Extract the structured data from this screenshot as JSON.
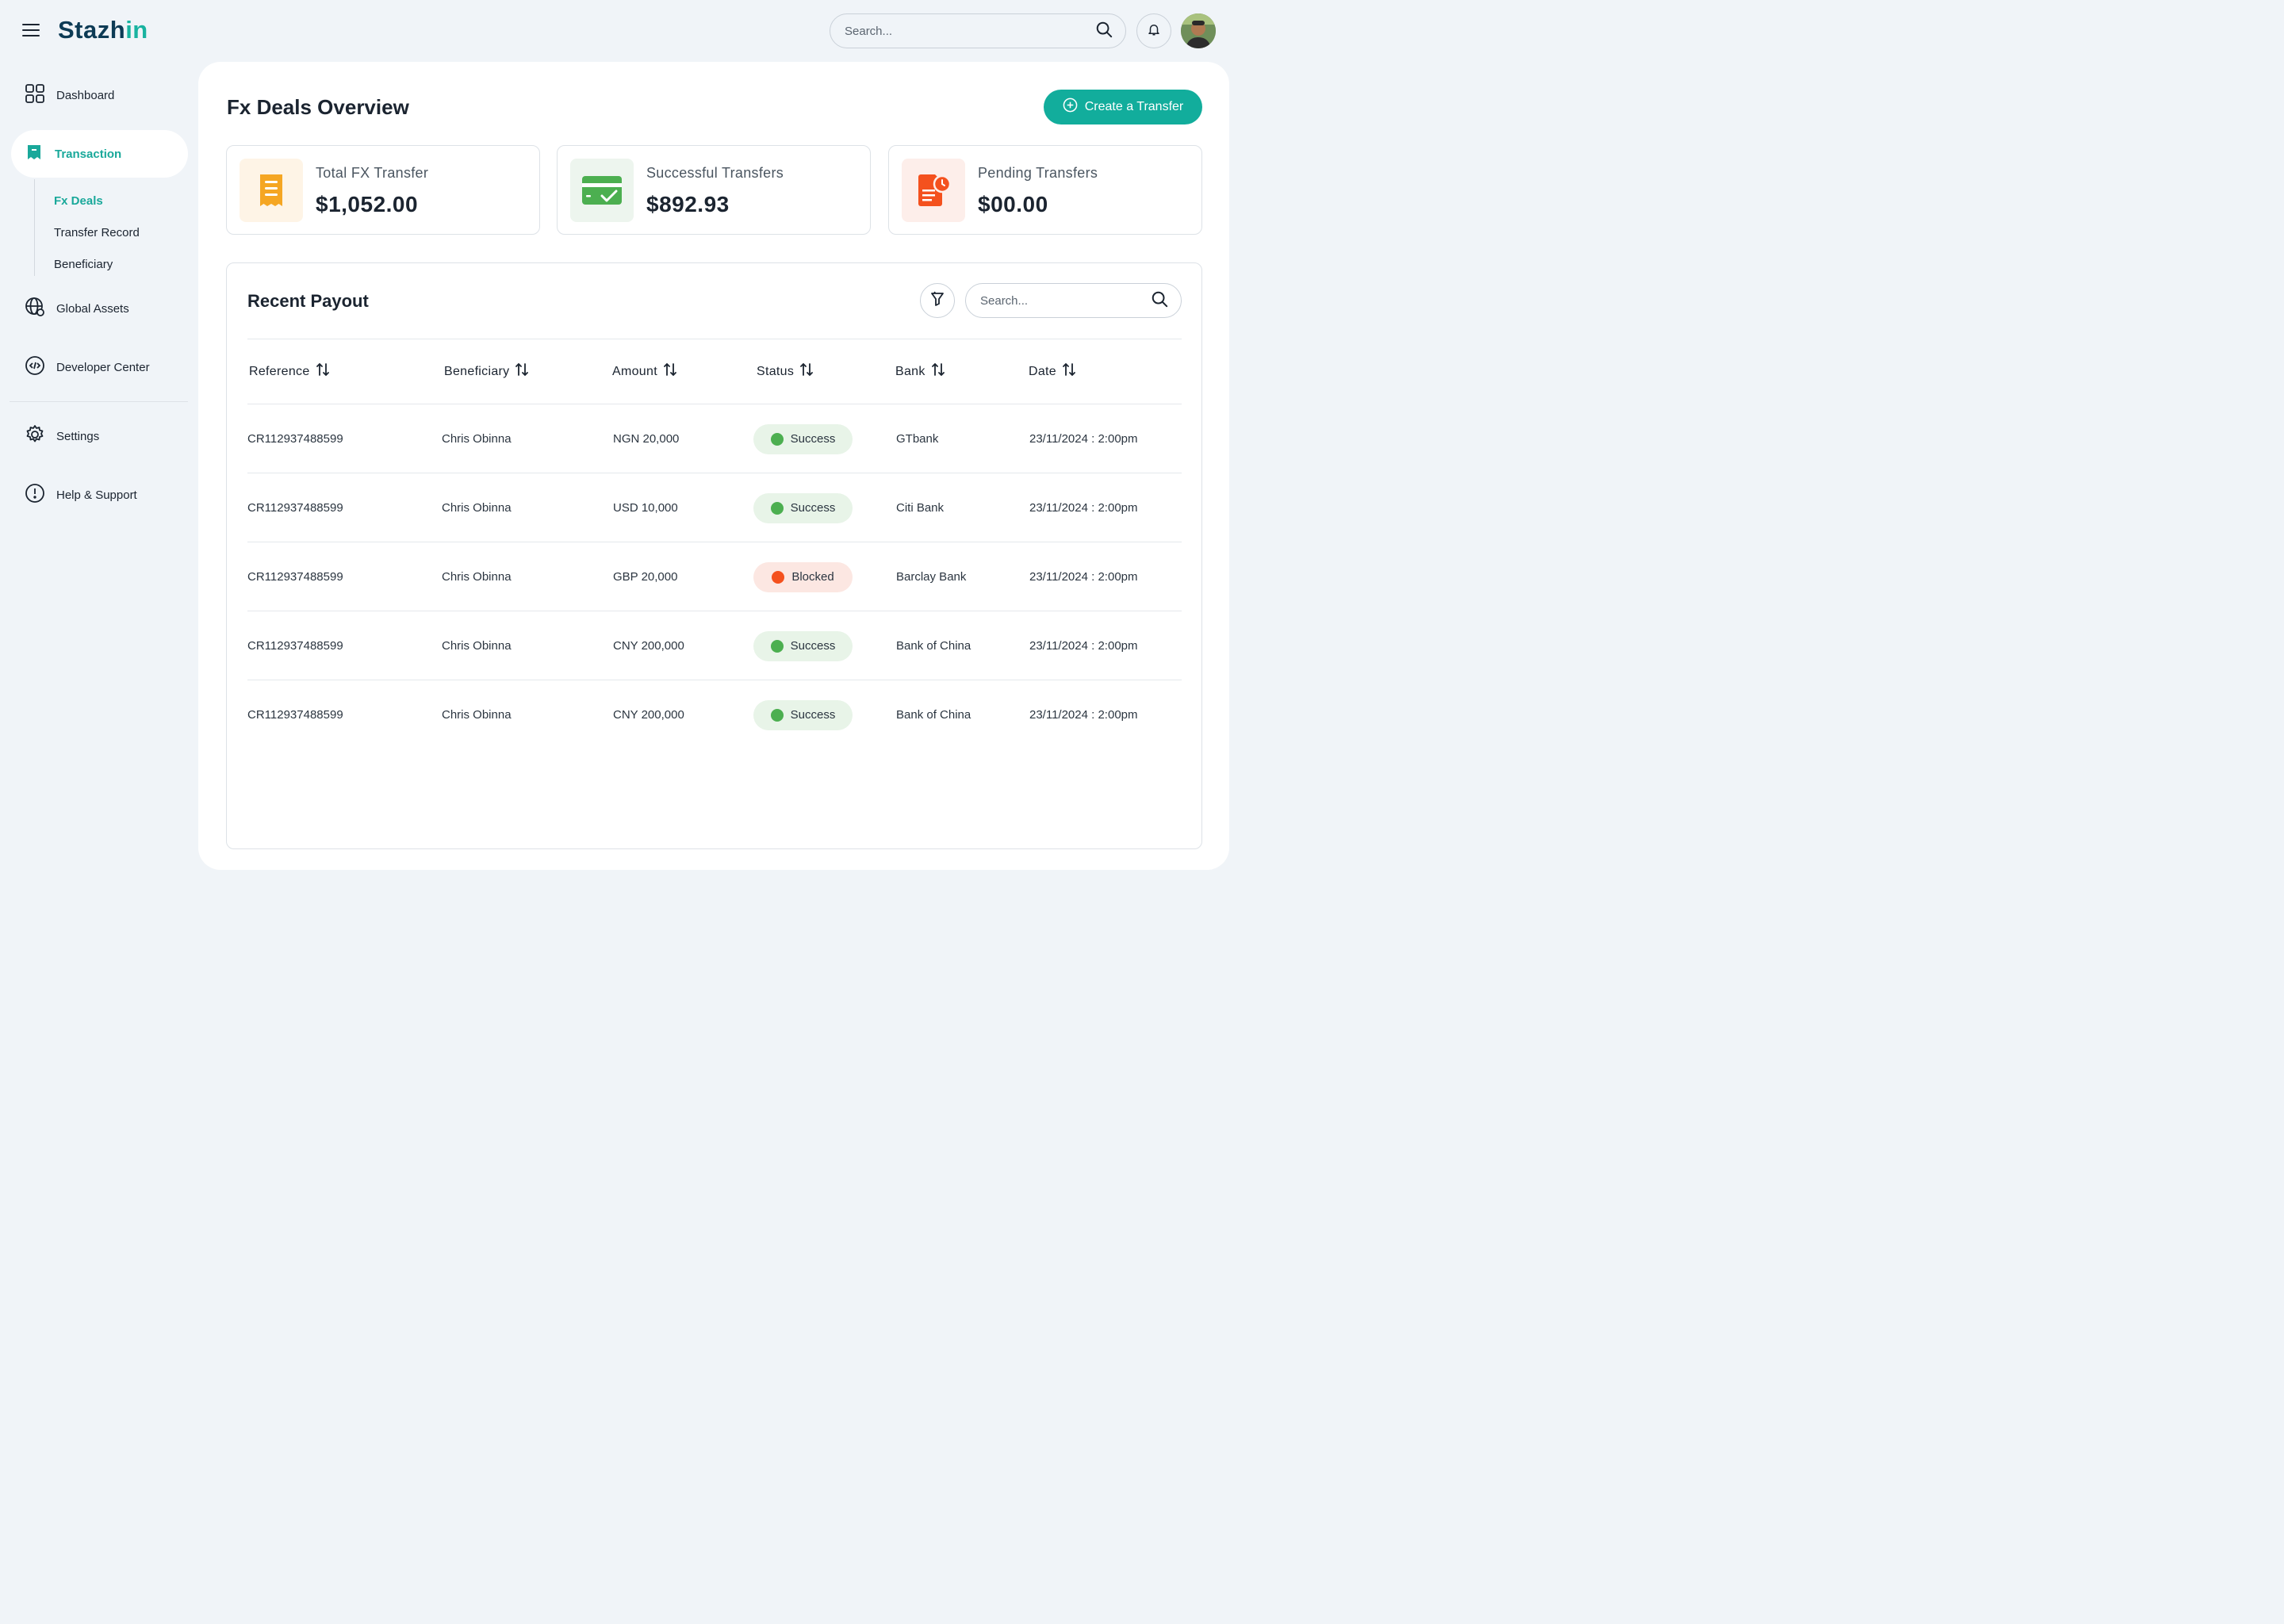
{
  "app": {
    "logo_main": "Stazh",
    "logo_accent": "in"
  },
  "header": {
    "search_placeholder": "Search..."
  },
  "sidebar": {
    "items": [
      {
        "label": "Dashboard"
      },
      {
        "label": "Transaction"
      },
      {
        "label": "Global Assets"
      },
      {
        "label": "Developer Center"
      },
      {
        "label": "Settings"
      },
      {
        "label": "Help & Support"
      }
    ],
    "submenu": [
      {
        "label": "Fx Deals"
      },
      {
        "label": "Transfer Record"
      },
      {
        "label": "Beneficiary"
      }
    ]
  },
  "main": {
    "title": "Fx Deals Overview",
    "create_button": "Create a Transfer",
    "cards": [
      {
        "label": "Total FX Transfer",
        "value": "$1,052.00",
        "icon": "receipt-icon",
        "color": "#f5a623"
      },
      {
        "label": "Successful Transfers",
        "value": "$892.93",
        "icon": "card-check-icon",
        "color": "#4caf50"
      },
      {
        "label": "Pending Transfers",
        "value": "$00.00",
        "icon": "document-clock-icon",
        "color": "#f4511e"
      }
    ]
  },
  "payout": {
    "title": "Recent Payout",
    "search_placeholder": "Search...",
    "columns": [
      "Reference",
      "Beneficiary",
      "Amount",
      "Status",
      "Bank",
      "Date"
    ],
    "rows": [
      {
        "reference": "CR112937488599",
        "beneficiary": "Chris Obinna",
        "amount": "NGN 20,000",
        "status": "Success",
        "bank": "GTbank",
        "date": "23/11/2024 : 2:00pm"
      },
      {
        "reference": "CR112937488599",
        "beneficiary": "Chris Obinna",
        "amount": "USD 10,000",
        "status": "Success",
        "bank": "Citi Bank",
        "date": "23/11/2024 : 2:00pm"
      },
      {
        "reference": "CR112937488599",
        "beneficiary": "Chris Obinna",
        "amount": "GBP 20,000",
        "status": "Blocked",
        "bank": "Barclay Bank",
        "date": "23/11/2024 : 2:00pm"
      },
      {
        "reference": "CR112937488599",
        "beneficiary": "Chris Obinna",
        "amount": "CNY 200,000",
        "status": "Success",
        "bank": "Bank of China",
        "date": "23/11/2024 : 2:00pm"
      },
      {
        "reference": "CR112937488599",
        "beneficiary": "Chris Obinna",
        "amount": "CNY 200,000",
        "status": "Success",
        "bank": "Bank of China",
        "date": "23/11/2024 : 2:00pm"
      }
    ]
  },
  "colors": {
    "accent": "#12ad9c",
    "success": "#4caf50",
    "blocked": "#f4511e"
  }
}
